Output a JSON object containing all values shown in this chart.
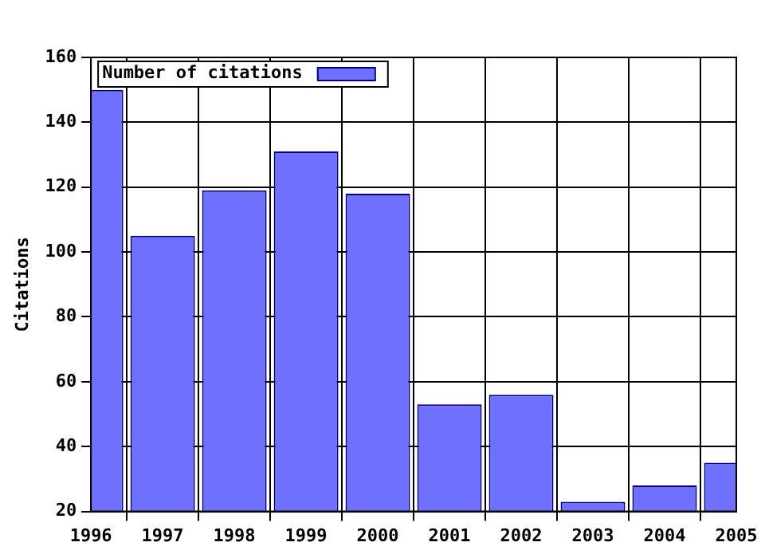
{
  "chart_data": {
    "type": "bar",
    "ylabel": "Citations",
    "x": [
      1996,
      1997,
      1998,
      1999,
      2000,
      2001,
      2002,
      2003,
      2004,
      2005
    ],
    "series": [
      {
        "name": "Number of citations",
        "color": "#7070ff",
        "values": [
          150,
          105,
          119,
          131,
          118,
          53,
          56,
          23,
          28,
          35
        ]
      }
    ],
    "xlim": [
      1996,
      2005
    ],
    "xticks": [
      1996,
      1997,
      1998,
      1999,
      2000,
      2001,
      2002,
      2003,
      2004,
      2005
    ],
    "ylim": [
      20,
      160
    ],
    "yticks": [
      20,
      40,
      60,
      80,
      100,
      120,
      140,
      160
    ],
    "grid": true,
    "legend": "top left"
  }
}
